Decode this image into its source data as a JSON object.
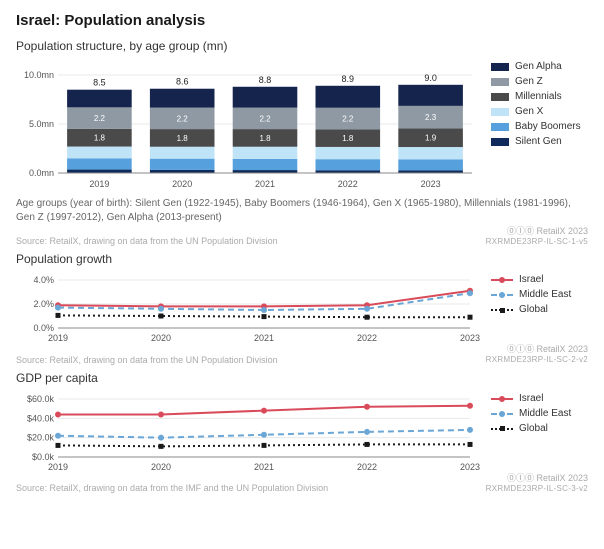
{
  "title": "Israel: Population analysis",
  "stacked": {
    "title": "Population structure, by age group (mn)",
    "categories": [
      "2019",
      "2020",
      "2021",
      "2022",
      "2023"
    ],
    "totals": [
      8.5,
      8.6,
      8.8,
      8.9,
      9.0
    ],
    "y_ticks": [
      0,
      5,
      10
    ],
    "y_tick_labels": [
      "0.0mn",
      "5.0mn",
      "10.0mn"
    ],
    "y_max": 10.0,
    "series": [
      {
        "name": "Silent Gen",
        "color": "#0f2b5b",
        "values": [
          0.35,
          0.32,
          0.3,
          0.28,
          0.26
        ]
      },
      {
        "name": "Baby Boomers",
        "color": "#56a0dd",
        "values": [
          1.15,
          1.14,
          1.14,
          1.13,
          1.12
        ]
      },
      {
        "name": "Gen X",
        "color": "#bfe3f7",
        "values": [
          1.2,
          1.22,
          1.24,
          1.25,
          1.27
        ]
      },
      {
        "name": "Millennials",
        "color": "#4a4a4a",
        "values": [
          1.8,
          1.8,
          1.8,
          1.8,
          1.9
        ],
        "show_label": true
      },
      {
        "name": "Gen Z",
        "color": "#8f99a3",
        "values": [
          2.2,
          2.2,
          2.2,
          2.2,
          2.3
        ],
        "show_label": true
      },
      {
        "name": "Gen Alpha",
        "color": "#14244c",
        "values": [
          1.8,
          1.92,
          2.12,
          2.24,
          2.15
        ]
      }
    ],
    "legend_order": [
      "Gen Alpha",
      "Gen Z",
      "Millennials",
      "Gen X",
      "Baby Boomers",
      "Silent Gen"
    ],
    "footnote": "Age groups (year of birth): Silent Gen (1922-1945), Baby Boomers (1946-1964), Gen X (1965-1980), Millennials (1981-1996), Gen Z (1997-2012), Gen Alpha (2013-present)",
    "source": "Source: RetailX, drawing on data from the UN Population Division",
    "attrib_top": "⓪Ⓘ⓪  RetailX 2023",
    "attrib_code": "RXRMDE23RP-IL-SC-1-v5"
  },
  "growth": {
    "title": "Population growth",
    "categories": [
      "2019",
      "2020",
      "2021",
      "2022",
      "2023"
    ],
    "y_ticks": [
      0,
      2,
      4
    ],
    "y_tick_labels": [
      "0.0%",
      "2.0%",
      "4.0%"
    ],
    "y_max": 4.0,
    "series": [
      {
        "name": "Israel",
        "color": "#d94b5a",
        "dash": "",
        "marker": "circle",
        "values": [
          1.9,
          1.8,
          1.8,
          1.9,
          3.1
        ]
      },
      {
        "name": "Middle East",
        "color": "#6aa6d6",
        "dash": "6,4",
        "marker": "circle",
        "values": [
          1.7,
          1.6,
          1.5,
          1.6,
          2.9
        ]
      },
      {
        "name": "Global",
        "color": "#1a1a1a",
        "dash": "2,3",
        "marker": "square",
        "values": [
          1.05,
          1.0,
          0.95,
          0.9,
          0.9
        ]
      }
    ],
    "source": "Source: RetailX, drawing on data from the UN Population Division",
    "attrib_top": "⓪Ⓘ⓪  RetailX 2023",
    "attrib_code": "RXRMDE23RP-IL-SC-2-v2"
  },
  "gdp": {
    "title": "GDP per capita",
    "categories": [
      "2019",
      "2020",
      "2021",
      "2022",
      "2023"
    ],
    "y_ticks": [
      0,
      20,
      40,
      60
    ],
    "y_tick_labels": [
      "$0.0k",
      "$20.0k",
      "$40.0k",
      "$60.0k"
    ],
    "y_max": 60,
    "series": [
      {
        "name": "Israel",
        "color": "#d94b5a",
        "dash": "",
        "marker": "circle",
        "values": [
          44,
          44,
          48,
          52,
          53
        ]
      },
      {
        "name": "Middle East",
        "color": "#6aa6d6",
        "dash": "6,4",
        "marker": "circle",
        "values": [
          22,
          20,
          23,
          26,
          28
        ]
      },
      {
        "name": "Global",
        "color": "#1a1a1a",
        "dash": "2,3",
        "marker": "square",
        "values": [
          12,
          11,
          12,
          13,
          13
        ]
      }
    ],
    "source": "Source: RetailX, drawing on data from the IMF and the UN Population Division",
    "attrib_top": "⓪Ⓘ⓪  RetailX 2023",
    "attrib_code": "RXRMDE23RP-IL-SC-3-v2"
  }
}
